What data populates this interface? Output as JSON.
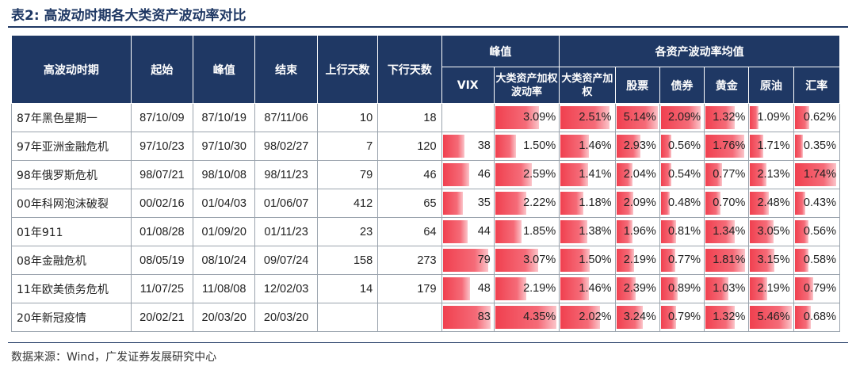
{
  "title": "表2:  高波动时期各大类资产波动率对比",
  "source": "数据来源：Wind，广发证券发展研究中心",
  "header": {
    "period": "高波动时期",
    "start": "起始",
    "peak": "峰值",
    "end": "结束",
    "up_days": "上行天数",
    "down_days": "下行天数",
    "peak_group": "峰值",
    "avg_group": "各资产波动率均值",
    "vix": "VIX",
    "asset_weighted_peak": "大类资产加权波动率",
    "asset_weighted_avg": "大类资产加权",
    "stock": "股票",
    "bond": "债券",
    "gold": "黄金",
    "oil": "原油",
    "fx": "汇率"
  },
  "rows": [
    {
      "name": "87年黑色星期一",
      "start": "87/10/09",
      "peak": "87/10/19",
      "end": "87/11/06",
      "up": "10",
      "down": "18",
      "vix": "",
      "vix_v": null,
      "pw": "3.09%",
      "pw_v": 3.09,
      "aw": "2.51%",
      "aw_v": 2.51,
      "stock": "5.14%",
      "stock_v": 5.14,
      "bond": "2.09%",
      "bond_v": 2.09,
      "gold": "1.32%",
      "gold_v": 1.32,
      "oil": "1.09%",
      "oil_v": 1.09,
      "fx": "0.62%",
      "fx_v": 0.62
    },
    {
      "name": "97年亚洲金融危机",
      "start": "97/10/23",
      "peak": "97/10/30",
      "end": "98/02/27",
      "up": "7",
      "down": "120",
      "vix": "38",
      "vix_v": 38,
      "pw": "1.50%",
      "pw_v": 1.5,
      "aw": "1.46%",
      "aw_v": 1.46,
      "stock": "2.93%",
      "stock_v": 2.93,
      "bond": "0.56%",
      "bond_v": 0.56,
      "gold": "1.76%",
      "gold_v": 1.76,
      "oil": "1.71%",
      "oil_v": 1.71,
      "fx": "0.35%",
      "fx_v": 0.35
    },
    {
      "name": "98年俄罗斯危机",
      "start": "98/07/21",
      "peak": "98/10/08",
      "end": "98/11/23",
      "up": "79",
      "down": "46",
      "vix": "46",
      "vix_v": 46,
      "pw": "2.59%",
      "pw_v": 2.59,
      "aw": "1.41%",
      "aw_v": 1.41,
      "stock": "2.04%",
      "stock_v": 2.04,
      "bond": "0.54%",
      "bond_v": 0.54,
      "gold": "0.77%",
      "gold_v": 0.77,
      "oil": "2.13%",
      "oil_v": 2.13,
      "fx": "1.74%",
      "fx_v": 1.74
    },
    {
      "name": "00年科网泡沫破裂",
      "start": "00/02/16",
      "peak": "01/04/03",
      "end": "01/06/07",
      "up": "412",
      "down": "65",
      "vix": "35",
      "vix_v": 35,
      "pw": "2.22%",
      "pw_v": 2.22,
      "aw": "1.18%",
      "aw_v": 1.18,
      "stock": "2.09%",
      "stock_v": 2.09,
      "bond": "0.48%",
      "bond_v": 0.48,
      "gold": "0.70%",
      "gold_v": 0.7,
      "oil": "2.48%",
      "oil_v": 2.48,
      "fx": "0.43%",
      "fx_v": 0.43
    },
    {
      "name": "01年911",
      "start": "01/08/28",
      "peak": "01/09/20",
      "end": "01/11/23",
      "up": "23",
      "down": "64",
      "vix": "44",
      "vix_v": 44,
      "pw": "1.85%",
      "pw_v": 1.85,
      "aw": "1.38%",
      "aw_v": 1.38,
      "stock": "1.96%",
      "stock_v": 1.96,
      "bond": "0.81%",
      "bond_v": 0.81,
      "gold": "1.34%",
      "gold_v": 1.34,
      "oil": "3.05%",
      "oil_v": 3.05,
      "fx": "0.56%",
      "fx_v": 0.56
    },
    {
      "name": "08年金融危机",
      "start": "08/05/19",
      "peak": "08/10/24",
      "end": "09/07/24",
      "up": "158",
      "down": "273",
      "vix": "79",
      "vix_v": 79,
      "pw": "3.07%",
      "pw_v": 3.07,
      "aw": "1.50%",
      "aw_v": 1.5,
      "stock": "2.19%",
      "stock_v": 2.19,
      "bond": "0.77%",
      "bond_v": 0.77,
      "gold": "1.81%",
      "gold_v": 1.81,
      "oil": "3.15%",
      "oil_v": 3.15,
      "fx": "0.58%",
      "fx_v": 0.58
    },
    {
      "name": "11年欧美债务危机",
      "start": "11/07/25",
      "peak": "11/08/08",
      "end": "12/02/03",
      "up": "14",
      "down": "179",
      "vix": "48",
      "vix_v": 48,
      "pw": "2.19%",
      "pw_v": 2.19,
      "aw": "1.46%",
      "aw_v": 1.46,
      "stock": "2.39%",
      "stock_v": 2.39,
      "bond": "0.89%",
      "bond_v": 0.89,
      "gold": "1.03%",
      "gold_v": 1.03,
      "oil": "2.19%",
      "oil_v": 2.19,
      "fx": "0.79%",
      "fx_v": 0.79
    },
    {
      "name": "20年新冠疫情",
      "start": "20/02/21",
      "peak": "20/03/20",
      "end": "20/03/20",
      "up": "",
      "down": "",
      "vix": "83",
      "vix_v": 83,
      "pw": "4.35%",
      "pw_v": 4.35,
      "aw": "2.02%",
      "aw_v": 2.02,
      "stock": "3.24%",
      "stock_v": 3.24,
      "bond": "0.79%",
      "bond_v": 0.79,
      "gold": "1.32%",
      "gold_v": 1.32,
      "oil": "5.46%",
      "oil_v": 5.46,
      "fx": "0.68%",
      "fx_v": 0.68
    }
  ]
}
